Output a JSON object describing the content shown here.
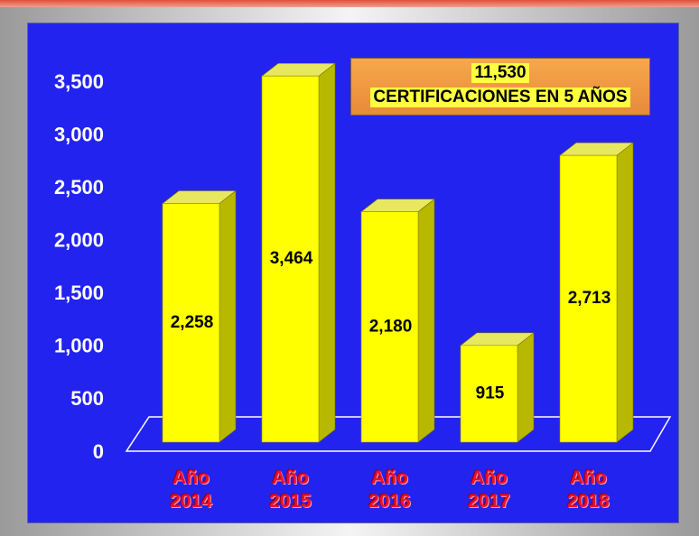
{
  "chart_data": {
    "type": "bar3d",
    "categories": [
      "Año 2014",
      "Año 2015",
      "Año 2016",
      "Año 2017",
      "Año 2018"
    ],
    "values": [
      2258,
      3464,
      2180,
      915,
      2713
    ],
    "value_labels": [
      "2,258",
      "3,464",
      "2,180",
      "915",
      "2,713"
    ],
    "color": "#ffff00",
    "ylim": [
      0,
      3500
    ],
    "yticks": [
      0,
      500,
      {
        "value": 1000,
        "label": "1,000"
      },
      {
        "value": 1500,
        "label": "1,500"
      },
      {
        "value": 2000,
        "label": "2,000"
      },
      {
        "value": 2500,
        "label": "2,500"
      },
      {
        "value": 3000,
        "label": "3,000"
      },
      {
        "value": 3500,
        "label": "3,500"
      }
    ],
    "annotation": [
      "11,530",
      "CERTIFICACIONES EN 5 AÑOS"
    ]
  }
}
